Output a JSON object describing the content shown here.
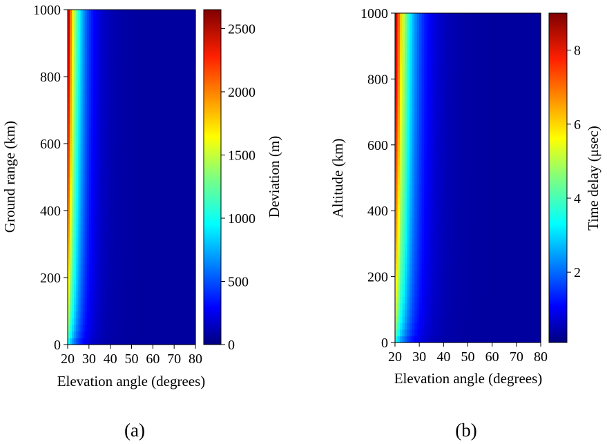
{
  "chart_data": [
    {
      "type": "heatmap",
      "panel_label": "(a)",
      "xlabel": "Elevation angle (degrees)",
      "ylabel": "Ground range (km)",
      "xlim": [
        20,
        80
      ],
      "ylim": [
        0,
        1000
      ],
      "xticks": [
        20,
        30,
        40,
        50,
        60,
        70,
        80
      ],
      "yticks": [
        0,
        200,
        400,
        600,
        800,
        1000
      ],
      "colorbar": {
        "label": "Deviation (m)",
        "range": [
          0,
          2650
        ],
        "ticks": [
          0,
          500,
          1000,
          1500,
          2000,
          2500
        ],
        "colormap": "jet"
      },
      "description_values": {
        "max_value_at": {
          "elevation": 20,
          "y": 1000,
          "value": 2650
        },
        "min_value": 0
      }
    },
    {
      "type": "heatmap",
      "panel_label": "(b)",
      "xlabel": "Elevation angle (degrees)",
      "ylabel": "Altitude (km)",
      "xlim": [
        20,
        80
      ],
      "ylim": [
        0,
        1000
      ],
      "xticks": [
        20,
        30,
        40,
        50,
        60,
        70,
        80
      ],
      "yticks": [
        0,
        200,
        400,
        600,
        800,
        1000
      ],
      "colorbar": {
        "label": "Time delay (μsec)",
        "range": [
          0.1,
          9
        ],
        "ticks": [
          2,
          4,
          6,
          8
        ],
        "colormap": "jet"
      },
      "description_values": {
        "max_value_at": {
          "elevation": 20,
          "y": 1000,
          "value": 9
        },
        "min_value": 0.1
      }
    }
  ],
  "colors": {
    "jet": [
      "#00007f",
      "#0000ff",
      "#007fff",
      "#00ffff",
      "#7fff7f",
      "#ffff00",
      "#ff7f00",
      "#ff0000",
      "#7f0000"
    ]
  }
}
